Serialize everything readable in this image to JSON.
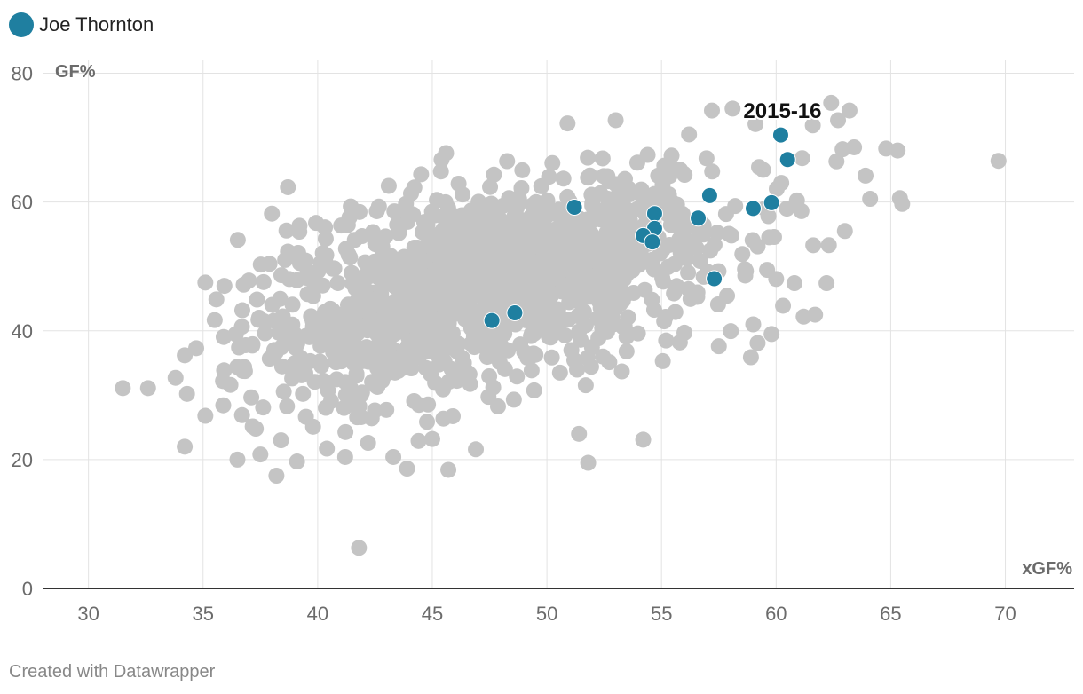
{
  "legend": {
    "label": "Joe Thornton",
    "color": "#1f7fa0"
  },
  "footer": "Created with Datawrapper",
  "colors": {
    "background_points": "#c4c4c4",
    "highlight": "#1f7fa0",
    "grid": "#e3e3e3",
    "axis": "#333333"
  },
  "chart_data": {
    "type": "scatter",
    "xlabel": "xGF%",
    "ylabel": "GF%",
    "xlim": [
      28,
      73
    ],
    "ylim": [
      0,
      82
    ],
    "xticks": [
      30,
      35,
      40,
      45,
      50,
      55,
      60,
      65,
      70
    ],
    "yticks": [
      0,
      20,
      40,
      60,
      80
    ],
    "grid": true,
    "legend_position": "top-left",
    "annotations": [
      {
        "text": "2015-16",
        "x": 60.2,
        "y": 70.4
      }
    ],
    "series": [
      {
        "name": "Joe Thornton",
        "points": [
          [
            60.2,
            70.4
          ],
          [
            60.5,
            66.6
          ],
          [
            57.1,
            61.0
          ],
          [
            59.8,
            59.9
          ],
          [
            59.0,
            59.0
          ],
          [
            51.2,
            59.2
          ],
          [
            54.7,
            58.2
          ],
          [
            56.6,
            57.5
          ],
          [
            54.7,
            55.9
          ],
          [
            54.2,
            54.8
          ],
          [
            54.6,
            53.8
          ],
          [
            57.3,
            48.1
          ],
          [
            48.6,
            42.8
          ],
          [
            47.6,
            41.6
          ]
        ]
      }
    ],
    "background_outliers": [
      [
        31.5,
        31.1
      ],
      [
        32.6,
        31.1
      ],
      [
        33.8,
        32.7
      ],
      [
        34.2,
        36.2
      ],
      [
        34.3,
        30.2
      ],
      [
        34.2,
        22.0
      ],
      [
        34.7,
        37.3
      ],
      [
        35.1,
        47.5
      ],
      [
        35.1,
        26.8
      ],
      [
        36.5,
        20.0
      ],
      [
        37.0,
        47.8
      ],
      [
        38.0,
        58.2
      ],
      [
        37.9,
        50.4
      ],
      [
        37.5,
        20.8
      ],
      [
        38.2,
        17.5
      ],
      [
        38.7,
        62.3
      ],
      [
        38.7,
        52.3
      ],
      [
        39.2,
        55.4
      ],
      [
        39.1,
        19.7
      ],
      [
        40.4,
        21.7
      ],
      [
        41.2,
        20.4
      ],
      [
        41.8,
        6.3
      ],
      [
        42.2,
        22.6
      ],
      [
        43.1,
        62.5
      ],
      [
        43.3,
        20.4
      ],
      [
        43.9,
        18.6
      ],
      [
        45.6,
        67.6
      ],
      [
        45.7,
        18.4
      ],
      [
        46.9,
        21.6
      ],
      [
        50.9,
        72.2
      ],
      [
        51.4,
        24.0
      ],
      [
        51.8,
        19.5
      ],
      [
        53.0,
        72.7
      ],
      [
        54.2,
        23.1
      ],
      [
        55.2,
        38.5
      ],
      [
        56.2,
        70.5
      ],
      [
        58.9,
        35.9
      ],
      [
        59.0,
        41.0
      ],
      [
        59.8,
        39.5
      ],
      [
        60.3,
        43.9
      ],
      [
        60.8,
        47.4
      ],
      [
        61.2,
        42.2
      ],
      [
        61.7,
        42.5
      ],
      [
        62.2,
        47.4
      ],
      [
        62.3,
        53.3
      ],
      [
        62.4,
        75.4
      ],
      [
        62.7,
        72.7
      ],
      [
        63.2,
        74.2
      ],
      [
        62.9,
        68.2
      ],
      [
        63.4,
        68.5
      ],
      [
        63.0,
        55.5
      ],
      [
        63.9,
        64.1
      ],
      [
        64.1,
        60.5
      ],
      [
        64.8,
        68.3
      ],
      [
        65.3,
        68.0
      ],
      [
        65.4,
        60.6
      ],
      [
        65.5,
        59.7
      ],
      [
        69.7,
        66.4
      ],
      [
        57.2,
        74.2
      ],
      [
        59.1,
        72.1
      ],
      [
        58.1,
        74.5
      ],
      [
        61.6,
        71.9
      ],
      [
        56.0,
        39.7
      ],
      [
        57.5,
        37.6
      ],
      [
        55.8,
        38.2
      ],
      [
        41.9,
        26.6
      ],
      [
        36.7,
        26.9
      ],
      [
        37.3,
        24.8
      ],
      [
        38.4,
        23.0
      ],
      [
        39.8,
        25.1
      ],
      [
        44.4,
        22.9
      ],
      [
        45.0,
        23.2
      ]
    ],
    "background_cloud": {
      "description_count": 1400,
      "center": [
        47.5,
        47.0
      ],
      "x_range": [
        35.5,
        63.0
      ],
      "y_range": [
        24,
        68
      ]
    }
  }
}
